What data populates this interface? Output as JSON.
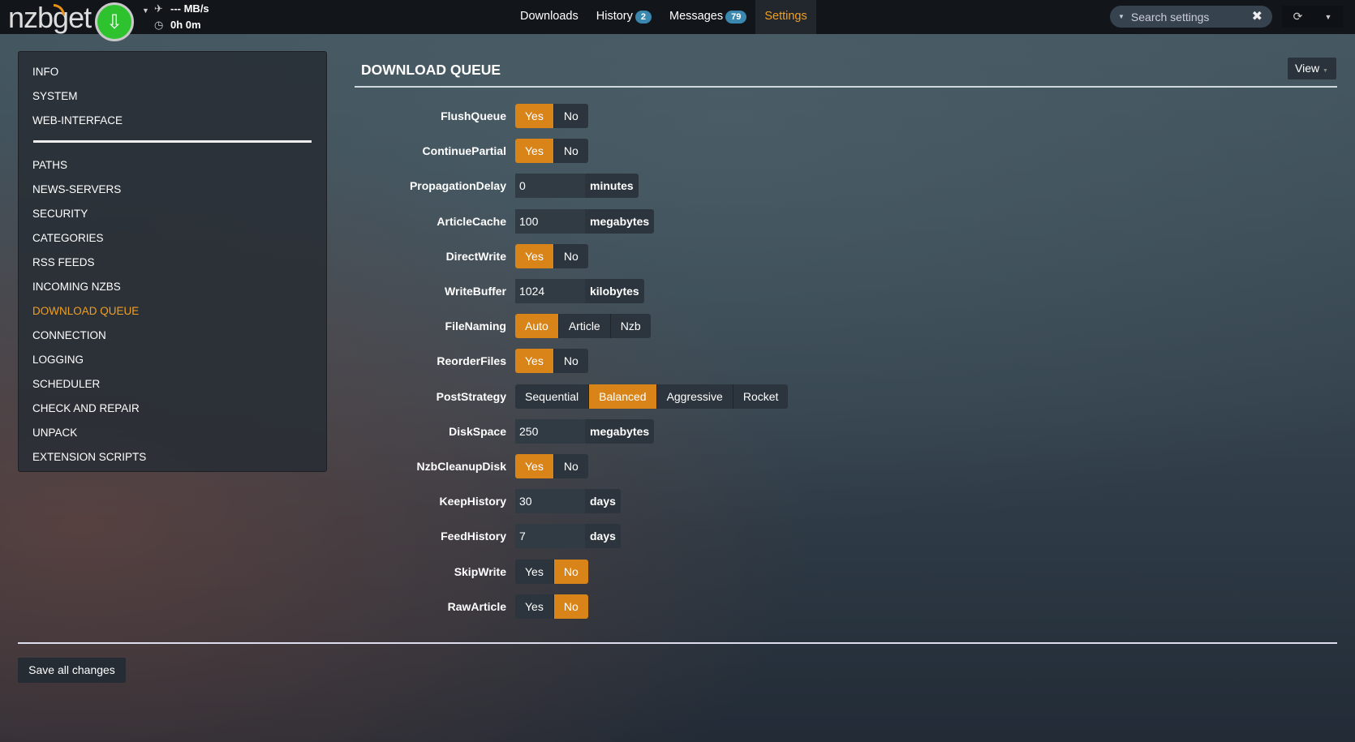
{
  "header": {
    "logo": "nzbget",
    "speed": "--- MB/s",
    "time": "0h 0m",
    "menu": [
      {
        "label": "Downloads"
      },
      {
        "label": "History",
        "badge": "2"
      },
      {
        "label": "Messages",
        "badge": "79"
      },
      {
        "label": "Settings",
        "active": true
      }
    ],
    "search_placeholder": "Search settings"
  },
  "sidebar": {
    "top": [
      "INFO",
      "SYSTEM",
      "WEB-INTERFACE"
    ],
    "sections": [
      "PATHS",
      "NEWS-SERVERS",
      "SECURITY",
      "CATEGORIES",
      "RSS FEEDS",
      "INCOMING NZBS",
      "DOWNLOAD QUEUE",
      "CONNECTION",
      "LOGGING",
      "SCHEDULER",
      "CHECK AND REPAIR",
      "UNPACK",
      "EXTENSION SCRIPTS"
    ],
    "active": "DOWNLOAD QUEUE"
  },
  "main": {
    "title": "DOWNLOAD QUEUE",
    "view_label": "View",
    "options": [
      {
        "name": "FlushQueue",
        "type": "switch",
        "choices": [
          "Yes",
          "No"
        ],
        "value": "Yes"
      },
      {
        "name": "ContinuePartial",
        "type": "switch",
        "choices": [
          "Yes",
          "No"
        ],
        "value": "Yes"
      },
      {
        "name": "PropagationDelay",
        "type": "input",
        "value": "0",
        "unit": "minutes"
      },
      {
        "name": "ArticleCache",
        "type": "input",
        "value": "100",
        "unit": "megabytes"
      },
      {
        "name": "DirectWrite",
        "type": "switch",
        "choices": [
          "Yes",
          "No"
        ],
        "value": "Yes"
      },
      {
        "name": "WriteBuffer",
        "type": "input",
        "value": "1024",
        "unit": "kilobytes"
      },
      {
        "name": "FileNaming",
        "type": "switch",
        "choices": [
          "Auto",
          "Article",
          "Nzb"
        ],
        "value": "Auto"
      },
      {
        "name": "ReorderFiles",
        "type": "switch",
        "choices": [
          "Yes",
          "No"
        ],
        "value": "Yes"
      },
      {
        "name": "PostStrategy",
        "type": "switch",
        "choices": [
          "Sequential",
          "Balanced",
          "Aggressive",
          "Rocket"
        ],
        "value": "Balanced"
      },
      {
        "name": "DiskSpace",
        "type": "input",
        "value": "250",
        "unit": "megabytes"
      },
      {
        "name": "NzbCleanupDisk",
        "type": "switch",
        "choices": [
          "Yes",
          "No"
        ],
        "value": "Yes"
      },
      {
        "name": "KeepHistory",
        "type": "input",
        "value": "30",
        "unit": "days"
      },
      {
        "name": "FeedHistory",
        "type": "input",
        "value": "7",
        "unit": "days"
      },
      {
        "name": "SkipWrite",
        "type": "switch",
        "choices": [
          "Yes",
          "No"
        ],
        "value": "No"
      },
      {
        "name": "RawArticle",
        "type": "switch",
        "choices": [
          "Yes",
          "No"
        ],
        "value": "No"
      }
    ],
    "save_label": "Save all changes"
  },
  "colors": {
    "accent": "#d88418",
    "active_text": "#f0a020",
    "badge": "#3a88b0",
    "play": "#2ec22e"
  }
}
